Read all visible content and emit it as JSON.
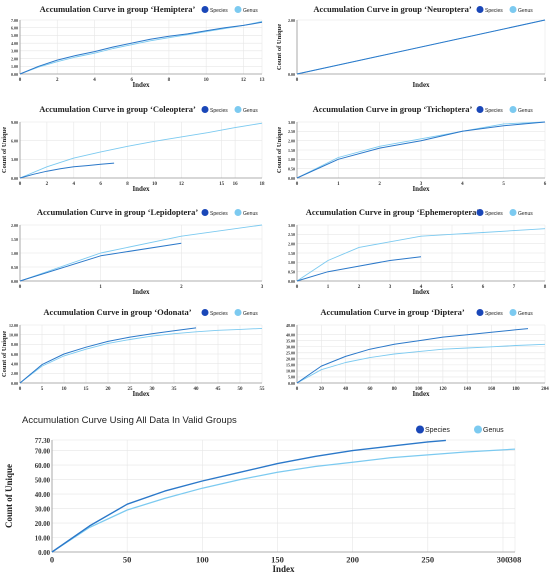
{
  "colors": {
    "species": "#2b78c9",
    "genus": "#7ccaf0",
    "species_legend": "#1a47b8",
    "genus_legend": "#7ccaf0"
  },
  "chart_data": [
    {
      "type": "line",
      "title": "Accumulation Curve in group ‘Hemiptera’",
      "xlabel": "Index",
      "ylabel": "",
      "xlim": [
        0,
        13
      ],
      "ylim": [
        0,
        7
      ],
      "x_ticks": [
        0,
        2,
        4,
        6,
        8,
        10,
        12,
        13
      ],
      "y_ticks": [
        0,
        1,
        2,
        3,
        4,
        5,
        6,
        7
      ],
      "y_tick_labels": [
        "0.00",
        "1.00",
        "2.00",
        "3.00",
        "4.00",
        "5.00",
        "6.00",
        "7.00"
      ],
      "legend": [
        "Species",
        "Genus"
      ],
      "series": [
        {
          "name": "Species",
          "x": [
            0,
            1,
            2,
            3,
            4,
            5,
            6,
            7,
            8,
            9,
            10,
            11,
            12,
            13
          ],
          "y": [
            0,
            1.0,
            1.8,
            2.4,
            2.9,
            3.5,
            4.0,
            4.5,
            4.9,
            5.2,
            5.6,
            6.0,
            6.3,
            6.7
          ]
        },
        {
          "name": "Genus",
          "x": [
            0,
            1,
            2,
            3,
            4,
            5,
            6,
            7,
            8,
            9,
            10,
            11,
            12,
            13
          ],
          "y": [
            0,
            0.9,
            1.6,
            2.2,
            2.7,
            3.3,
            3.8,
            4.3,
            4.7,
            5.1,
            5.5,
            5.9,
            6.3,
            6.8
          ]
        }
      ]
    },
    {
      "type": "line",
      "title": "Accumulation Curve in group ‘Neuroptera’",
      "xlabel": "Index",
      "ylabel": "Count of Unique",
      "xlim": [
        0,
        1
      ],
      "ylim": [
        0,
        2
      ],
      "x_ticks": [
        0,
        1
      ],
      "y_ticks": [
        0,
        2
      ],
      "y_tick_labels": [
        "0.00",
        "2.00"
      ],
      "legend": [
        "Species",
        "Genus"
      ],
      "series": [
        {
          "name": "Species",
          "x": [
            0,
            1
          ],
          "y": [
            0,
            2
          ]
        },
        {
          "name": "Genus",
          "x": [
            0,
            1
          ],
          "y": [
            0,
            2
          ]
        }
      ]
    },
    {
      "type": "line",
      "title": "Accumulation Curve in group ‘Coleoptera’",
      "xlabel": "Index",
      "ylabel": "Count of Unique",
      "xlim": [
        0,
        18
      ],
      "ylim": [
        0,
        9
      ],
      "x_ticks": [
        0,
        2,
        4,
        6,
        8,
        10,
        12,
        15,
        16,
        18
      ],
      "y_ticks": [
        0,
        3,
        6,
        9
      ],
      "y_tick_labels": [
        "0.00",
        "3.00",
        "6.00",
        "9.00"
      ],
      "legend": [
        "Species",
        "Genus"
      ],
      "series": [
        {
          "name": "Species",
          "x": [
            0,
            1,
            2,
            3,
            4,
            5,
            6,
            7
          ],
          "y": [
            0,
            0.6,
            1.1,
            1.5,
            1.8,
            2.0,
            2.2,
            2.4
          ]
        },
        {
          "name": "Genus",
          "x": [
            0,
            2,
            4,
            6,
            8,
            10,
            12,
            14,
            16,
            18
          ],
          "y": [
            0,
            1.8,
            3.2,
            4.2,
            5.1,
            5.9,
            6.6,
            7.3,
            8.1,
            8.8
          ]
        }
      ]
    },
    {
      "type": "line",
      "title": "Accumulation Curve in group ‘Trichoptera’",
      "xlabel": "Index",
      "ylabel": "Count of Unique",
      "xlim": [
        0,
        6
      ],
      "ylim": [
        0,
        3
      ],
      "x_ticks": [
        0,
        1,
        2,
        3,
        4,
        5,
        6
      ],
      "y_ticks": [
        0,
        0.5,
        1,
        1.5,
        2,
        2.5,
        3
      ],
      "y_tick_labels": [
        "0.00",
        "0.50",
        "1.00",
        "1.50",
        "2.00",
        "2.50",
        "3.00"
      ],
      "legend": [
        "Species",
        "Genus"
      ],
      "series": [
        {
          "name": "Species",
          "x": [
            0,
            1,
            2,
            3,
            4,
            5,
            6
          ],
          "y": [
            0,
            1.0,
            1.6,
            2.0,
            2.5,
            2.8,
            3.0
          ]
        },
        {
          "name": "Genus",
          "x": [
            0,
            1,
            2,
            3,
            4,
            5,
            6
          ],
          "y": [
            0,
            1.1,
            1.7,
            2.1,
            2.5,
            2.9,
            3.0
          ]
        }
      ]
    },
    {
      "type": "line",
      "title": "Accumulation Curve in group ‘Lepidoptera’",
      "xlabel": "Index",
      "ylabel": "",
      "xlim": [
        0,
        3
      ],
      "ylim": [
        0,
        2
      ],
      "x_ticks": [
        0,
        1,
        2,
        3
      ],
      "y_ticks": [
        0,
        0.5,
        1,
        1.5,
        2
      ],
      "y_tick_labels": [
        "0.00",
        "0.50",
        "1.00",
        "1.50",
        "2.00"
      ],
      "legend": [
        "Species",
        "Genus"
      ],
      "series": [
        {
          "name": "Species",
          "x": [
            0,
            1,
            2
          ],
          "y": [
            0,
            0.9,
            1.35
          ]
        },
        {
          "name": "Genus",
          "x": [
            0,
            1,
            2,
            3
          ],
          "y": [
            0,
            1.0,
            1.6,
            2.0
          ]
        }
      ]
    },
    {
      "type": "line",
      "title": "Accumulation Curve in group ‘Ephemeroptera’",
      "xlabel": "Index",
      "ylabel": "",
      "xlim": [
        0,
        8
      ],
      "ylim": [
        0,
        3
      ],
      "x_ticks": [
        0,
        1,
        2,
        3,
        4,
        5,
        6,
        7,
        8
      ],
      "y_ticks": [
        0,
        0.5,
        1,
        1.5,
        2,
        2.5,
        3
      ],
      "y_tick_labels": [
        "0.00",
        "0.50",
        "1.00",
        "1.50",
        "2.00",
        "2.50",
        "3.00"
      ],
      "legend": [
        "Species",
        "Genus"
      ],
      "series": [
        {
          "name": "Species",
          "x": [
            0,
            1,
            2,
            3,
            4
          ],
          "y": [
            0,
            0.5,
            0.8,
            1.1,
            1.3
          ]
        },
        {
          "name": "Genus",
          "x": [
            0,
            1,
            2,
            3,
            4,
            5,
            6,
            7,
            8
          ],
          "y": [
            0,
            1.1,
            1.8,
            2.1,
            2.4,
            2.5,
            2.6,
            2.7,
            2.8
          ]
        }
      ]
    },
    {
      "type": "line",
      "title": "Accumulation Curve in group ‘Odonata’",
      "xlabel": "Index",
      "ylabel": "Count of Unique",
      "xlim": [
        0,
        55
      ],
      "ylim": [
        0,
        12
      ],
      "x_ticks": [
        0,
        5,
        10,
        15,
        20,
        25,
        30,
        35,
        40,
        45,
        50,
        55
      ],
      "y_ticks": [
        0,
        2,
        4,
        6,
        8,
        10,
        12
      ],
      "y_tick_labels": [
        "0.00",
        "2.00",
        "4.00",
        "6.00",
        "8.00",
        "10.00",
        "12.00"
      ],
      "legend": [
        "Species",
        "Genus"
      ],
      "series": [
        {
          "name": "Species",
          "x": [
            0,
            5,
            10,
            15,
            20,
            25,
            30,
            35,
            40
          ],
          "y": [
            0,
            3.8,
            6.0,
            7.4,
            8.6,
            9.5,
            10.2,
            10.8,
            11.4
          ]
        },
        {
          "name": "Genus",
          "x": [
            0,
            5,
            10,
            15,
            20,
            25,
            30,
            35,
            40,
            45,
            50,
            55
          ],
          "y": [
            0,
            3.5,
            5.6,
            7.0,
            8.2,
            9.0,
            9.7,
            10.2,
            10.6,
            10.9,
            11.1,
            11.3
          ]
        }
      ]
    },
    {
      "type": "line",
      "title": "Accumulation Curve in group ‘Diptera’",
      "xlabel": "Index",
      "ylabel": "",
      "xlim": [
        0,
        204
      ],
      "ylim": [
        0,
        48
      ],
      "x_ticks": [
        0,
        20,
        40,
        60,
        80,
        100,
        120,
        140,
        160,
        180,
        204
      ],
      "y_ticks": [
        0,
        5,
        10,
        15,
        20,
        25,
        30,
        35,
        40,
        48
      ],
      "y_tick_labels": [
        "0.00",
        "5.00",
        "10.00",
        "15.00",
        "20.00",
        "25.00",
        "30.00",
        "35.00",
        "40.00",
        "48.00"
      ],
      "legend": [
        "Species",
        "Genus"
      ],
      "series": [
        {
          "name": "Species",
          "x": [
            0,
            20,
            40,
            60,
            80,
            100,
            120,
            140,
            160,
            180,
            190
          ],
          "y": [
            0,
            14,
            22,
            28,
            32,
            35,
            38,
            40,
            42,
            44,
            45
          ]
        },
        {
          "name": "Genus",
          "x": [
            0,
            20,
            40,
            60,
            80,
            100,
            120,
            140,
            160,
            180,
            204
          ],
          "y": [
            0,
            11,
            17,
            21,
            24,
            26,
            28,
            29,
            30,
            31,
            32
          ]
        }
      ]
    },
    {
      "type": "line",
      "title": "Accumulation Curve Using All Data In Valid Groups",
      "xlabel": "Index",
      "ylabel": "Count of Unique",
      "xlim": [
        0,
        308
      ],
      "ylim": [
        0,
        77.3
      ],
      "x_ticks": [
        0,
        50,
        100,
        150,
        200,
        250,
        300,
        308
      ],
      "y_ticks": [
        0,
        10,
        20,
        30,
        40,
        50,
        60,
        70,
        77.3
      ],
      "y_tick_labels": [
        "0.00",
        "10.00",
        "20.00",
        "30.00",
        "40.00",
        "50.00",
        "60.00",
        "70.00",
        "77.30"
      ],
      "legend": [
        "Species",
        "Genus"
      ],
      "series": [
        {
          "name": "Species",
          "x": [
            0,
            25,
            50,
            75,
            100,
            125,
            150,
            175,
            200,
            225,
            250,
            262
          ],
          "y": [
            0,
            18,
            33,
            42,
            49,
            55,
            61,
            66,
            70,
            73,
            76,
            77
          ]
        },
        {
          "name": "Genus",
          "x": [
            0,
            25,
            50,
            75,
            100,
            125,
            150,
            175,
            200,
            225,
            250,
            275,
            308
          ],
          "y": [
            0,
            17,
            29,
            37,
            44,
            50,
            55,
            59,
            62,
            65,
            67,
            69,
            71
          ]
        }
      ]
    }
  ]
}
